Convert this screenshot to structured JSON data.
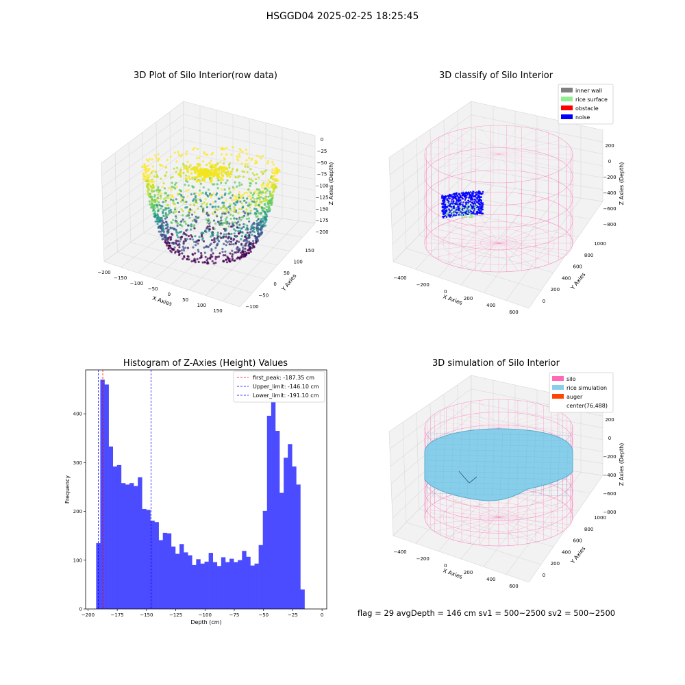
{
  "suptitle": "HSGGD04 2025-02-25 18:25:45",
  "status_line": "flag = 29  avgDepth = 146 cm  sv1 = 500~2500  sv2 = 500~2500",
  "chart_data": [
    {
      "type": "scatter3d",
      "title": "3D Plot of Silo Interior(row data)",
      "xlabel": "X Axies",
      "ylabel": "Y Axies",
      "zlabel": "Z Axies (Depth)",
      "xticks": [
        "−200",
        "−150",
        "−100",
        "−50",
        "0",
        "50",
        "100",
        "150"
      ],
      "yticks": [
        "−100",
        "−50",
        "0",
        "50",
        "100",
        "150"
      ],
      "zticks": [
        "0",
        "−25",
        "−50",
        "−75",
        "−100",
        "−125",
        "−150",
        "−175",
        "−200"
      ],
      "xlim": [
        -200,
        175
      ],
      "ylim": [
        -100,
        175
      ],
      "zlim": [
        -200,
        0
      ],
      "colormap": "viridis"
    },
    {
      "type": "scatter3d",
      "title": "3D classify of Silo Interior",
      "xlabel": "X Axies",
      "ylabel": "Y Axies",
      "zlabel": "Z Axies (Depth)",
      "xticks": [
        "−400",
        "−200",
        "0",
        "200",
        "400",
        "600"
      ],
      "yticks": [
        "0",
        "200",
        "400",
        "600",
        "800",
        "1000"
      ],
      "zticks": [
        "200",
        "0",
        "−200",
        "−400",
        "−600",
        "−800"
      ],
      "legend": [
        {
          "label": "inner wall",
          "color": "#808080"
        },
        {
          "label": "rice surface",
          "color": "#90ee90"
        },
        {
          "label": "obstacle",
          "color": "#ff0000"
        },
        {
          "label": "noise",
          "color": "#0000ff"
        }
      ],
      "legend_position": "top-right"
    },
    {
      "type": "bar",
      "title": "Histogram of Z-Axies (Height) Values",
      "xlabel": "Depth (cm)",
      "ylabel": "Frequency",
      "xlim": [
        -202,
        4
      ],
      "ylim": [
        0,
        490
      ],
      "xticks": [
        -200,
        -175,
        -150,
        -125,
        -100,
        -75,
        -50,
        -25,
        0
      ],
      "yticks": [
        0,
        100,
        200,
        300,
        400
      ],
      "bar_color": "#4b4bff",
      "bin_start": -193,
      "bin_width": 3.56,
      "values": [
        135,
        470,
        460,
        333,
        292,
        295,
        258,
        255,
        258,
        252,
        270,
        205,
        203,
        181,
        178,
        141,
        156,
        155,
        128,
        113,
        133,
        116,
        110,
        90,
        102,
        93,
        97,
        115,
        96,
        88,
        106,
        96,
        103,
        96,
        100,
        119,
        107,
        89,
        93,
        131,
        201,
        396,
        428,
        365,
        238,
        310,
        338,
        292,
        255,
        40
      ],
      "vlines": [
        {
          "x": -187.35,
          "color": "#ff0000",
          "label": "first_peak: -187.35 cm"
        },
        {
          "x": -146.1,
          "color": "#0000ff",
          "label": "Upper_limit: -146.10 cm"
        },
        {
          "x": -191.1,
          "color": "#0000ff",
          "label": "Lower_limit: -191.10 cm"
        }
      ],
      "legend_position": "top-right"
    },
    {
      "type": "surface3d",
      "title": "3D simulation of Silo Interior",
      "xlabel": "X Axies",
      "ylabel": "Y Axies",
      "zlabel": "Z Axies (Depth)",
      "xticks": [
        "−400",
        "−200",
        "0",
        "200",
        "400",
        "600"
      ],
      "yticks": [
        "0",
        "200",
        "400",
        "600",
        "800",
        "1000"
      ],
      "zticks": [
        "200",
        "0",
        "−200",
        "−400",
        "−600",
        "−800"
      ],
      "legend": [
        {
          "label": "silo",
          "color": "#ff69b4"
        },
        {
          "label": "rice simulation",
          "color": "#87ceeb"
        },
        {
          "label": "auger",
          "color": "#ff4500"
        },
        {
          "label": "center(76,488)",
          "color": "none"
        }
      ],
      "legend_position": "top-right"
    }
  ]
}
